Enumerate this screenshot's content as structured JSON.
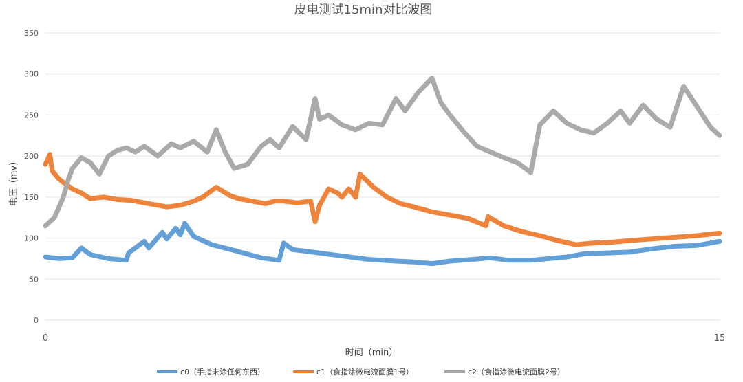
{
  "chart_data": {
    "type": "line",
    "title": "皮电测试15min对比波图",
    "xlabel": "时间（min）",
    "ylabel": "电压（mv）",
    "xlim": [
      0,
      15
    ],
    "ylim": [
      0,
      350
    ],
    "y_ticks": [
      0,
      50,
      100,
      150,
      200,
      250,
      300,
      350
    ],
    "x_ticks": [
      0,
      15
    ],
    "grid": true,
    "legend_position": "bottom",
    "series": [
      {
        "name": "c0（手指未涂任何东西）",
        "color": "#5b9bd5",
        "x": [
          0,
          0.3,
          0.6,
          0.8,
          1.0,
          1.4,
          1.8,
          1.85,
          2.2,
          2.3,
          2.6,
          2.7,
          2.9,
          3.0,
          3.1,
          3.3,
          3.7,
          4.2,
          4.8,
          5.2,
          5.3,
          5.5,
          5.8,
          6.5,
          7.2,
          7.8,
          8.2,
          8.6,
          9.0,
          9.5,
          9.9,
          10.3,
          10.8,
          11.2,
          11.6,
          12.0,
          12.5,
          13.0,
          13.5,
          14.0,
          14.5,
          15.0
        ],
        "y": [
          77,
          75,
          76,
          88,
          80,
          75,
          73,
          82,
          96,
          88,
          107,
          99,
          112,
          104,
          118,
          102,
          92,
          85,
          76,
          73,
          94,
          86,
          84,
          79,
          74,
          72,
          71,
          69,
          72,
          74,
          76,
          73,
          73,
          75,
          77,
          81,
          82,
          83,
          87,
          90,
          91,
          96
        ]
      },
      {
        "name": "c1（食指涂微电流面膜1号）",
        "color": "#ed7d31",
        "x": [
          0,
          0.1,
          0.15,
          0.3,
          0.4,
          0.6,
          0.8,
          1.0,
          1.3,
          1.6,
          1.9,
          2.3,
          2.7,
          3.0,
          3.3,
          3.5,
          3.8,
          4.1,
          4.3,
          4.6,
          4.9,
          5.1,
          5.3,
          5.6,
          5.9,
          6.0,
          6.1,
          6.3,
          6.5,
          6.6,
          6.75,
          6.9,
          7.0,
          7.3,
          7.6,
          7.9,
          8.2,
          8.6,
          9.0,
          9.4,
          9.8,
          9.85,
          10.2,
          10.6,
          11.0,
          11.4,
          11.8,
          12.2,
          12.6,
          13.0,
          13.5,
          14.0,
          14.5,
          15.0
        ],
        "y": [
          190,
          202,
          182,
          172,
          168,
          160,
          155,
          148,
          150,
          147,
          146,
          142,
          138,
          140,
          145,
          150,
          162,
          152,
          148,
          145,
          142,
          145,
          145,
          143,
          145,
          120,
          140,
          160,
          155,
          150,
          160,
          150,
          178,
          162,
          150,
          142,
          138,
          132,
          128,
          124,
          115,
          126,
          115,
          108,
          103,
          97,
          92,
          94,
          95,
          97,
          99,
          101,
          103,
          106
        ]
      },
      {
        "name": "c2（食指涂微电流面膜2号）",
        "color": "#a5a5a5",
        "x": [
          0,
          0.2,
          0.4,
          0.5,
          0.6,
          0.8,
          1.0,
          1.2,
          1.4,
          1.6,
          1.8,
          2.0,
          2.2,
          2.5,
          2.8,
          3.0,
          3.3,
          3.6,
          3.8,
          4.0,
          4.2,
          4.5,
          4.8,
          5.0,
          5.2,
          5.5,
          5.8,
          6.0,
          6.1,
          6.3,
          6.6,
          6.9,
          7.2,
          7.5,
          7.8,
          8.0,
          8.3,
          8.6,
          8.8,
          9.0,
          9.3,
          9.6,
          9.9,
          10.2,
          10.5,
          10.8,
          11.0,
          11.3,
          11.6,
          11.9,
          12.2,
          12.5,
          12.8,
          13.0,
          13.3,
          13.6,
          13.9,
          14.2,
          14.5,
          14.8,
          15.0
        ],
        "y": [
          115,
          125,
          150,
          170,
          185,
          198,
          192,
          178,
          200,
          207,
          210,
          205,
          212,
          200,
          215,
          210,
          218,
          205,
          232,
          205,
          185,
          190,
          212,
          220,
          210,
          236,
          220,
          270,
          245,
          250,
          238,
          232,
          240,
          238,
          270,
          255,
          278,
          295,
          265,
          250,
          230,
          212,
          205,
          198,
          192,
          180,
          238,
          255,
          240,
          232,
          228,
          240,
          255,
          240,
          262,
          245,
          235,
          285,
          260,
          235,
          225
        ]
      }
    ]
  }
}
